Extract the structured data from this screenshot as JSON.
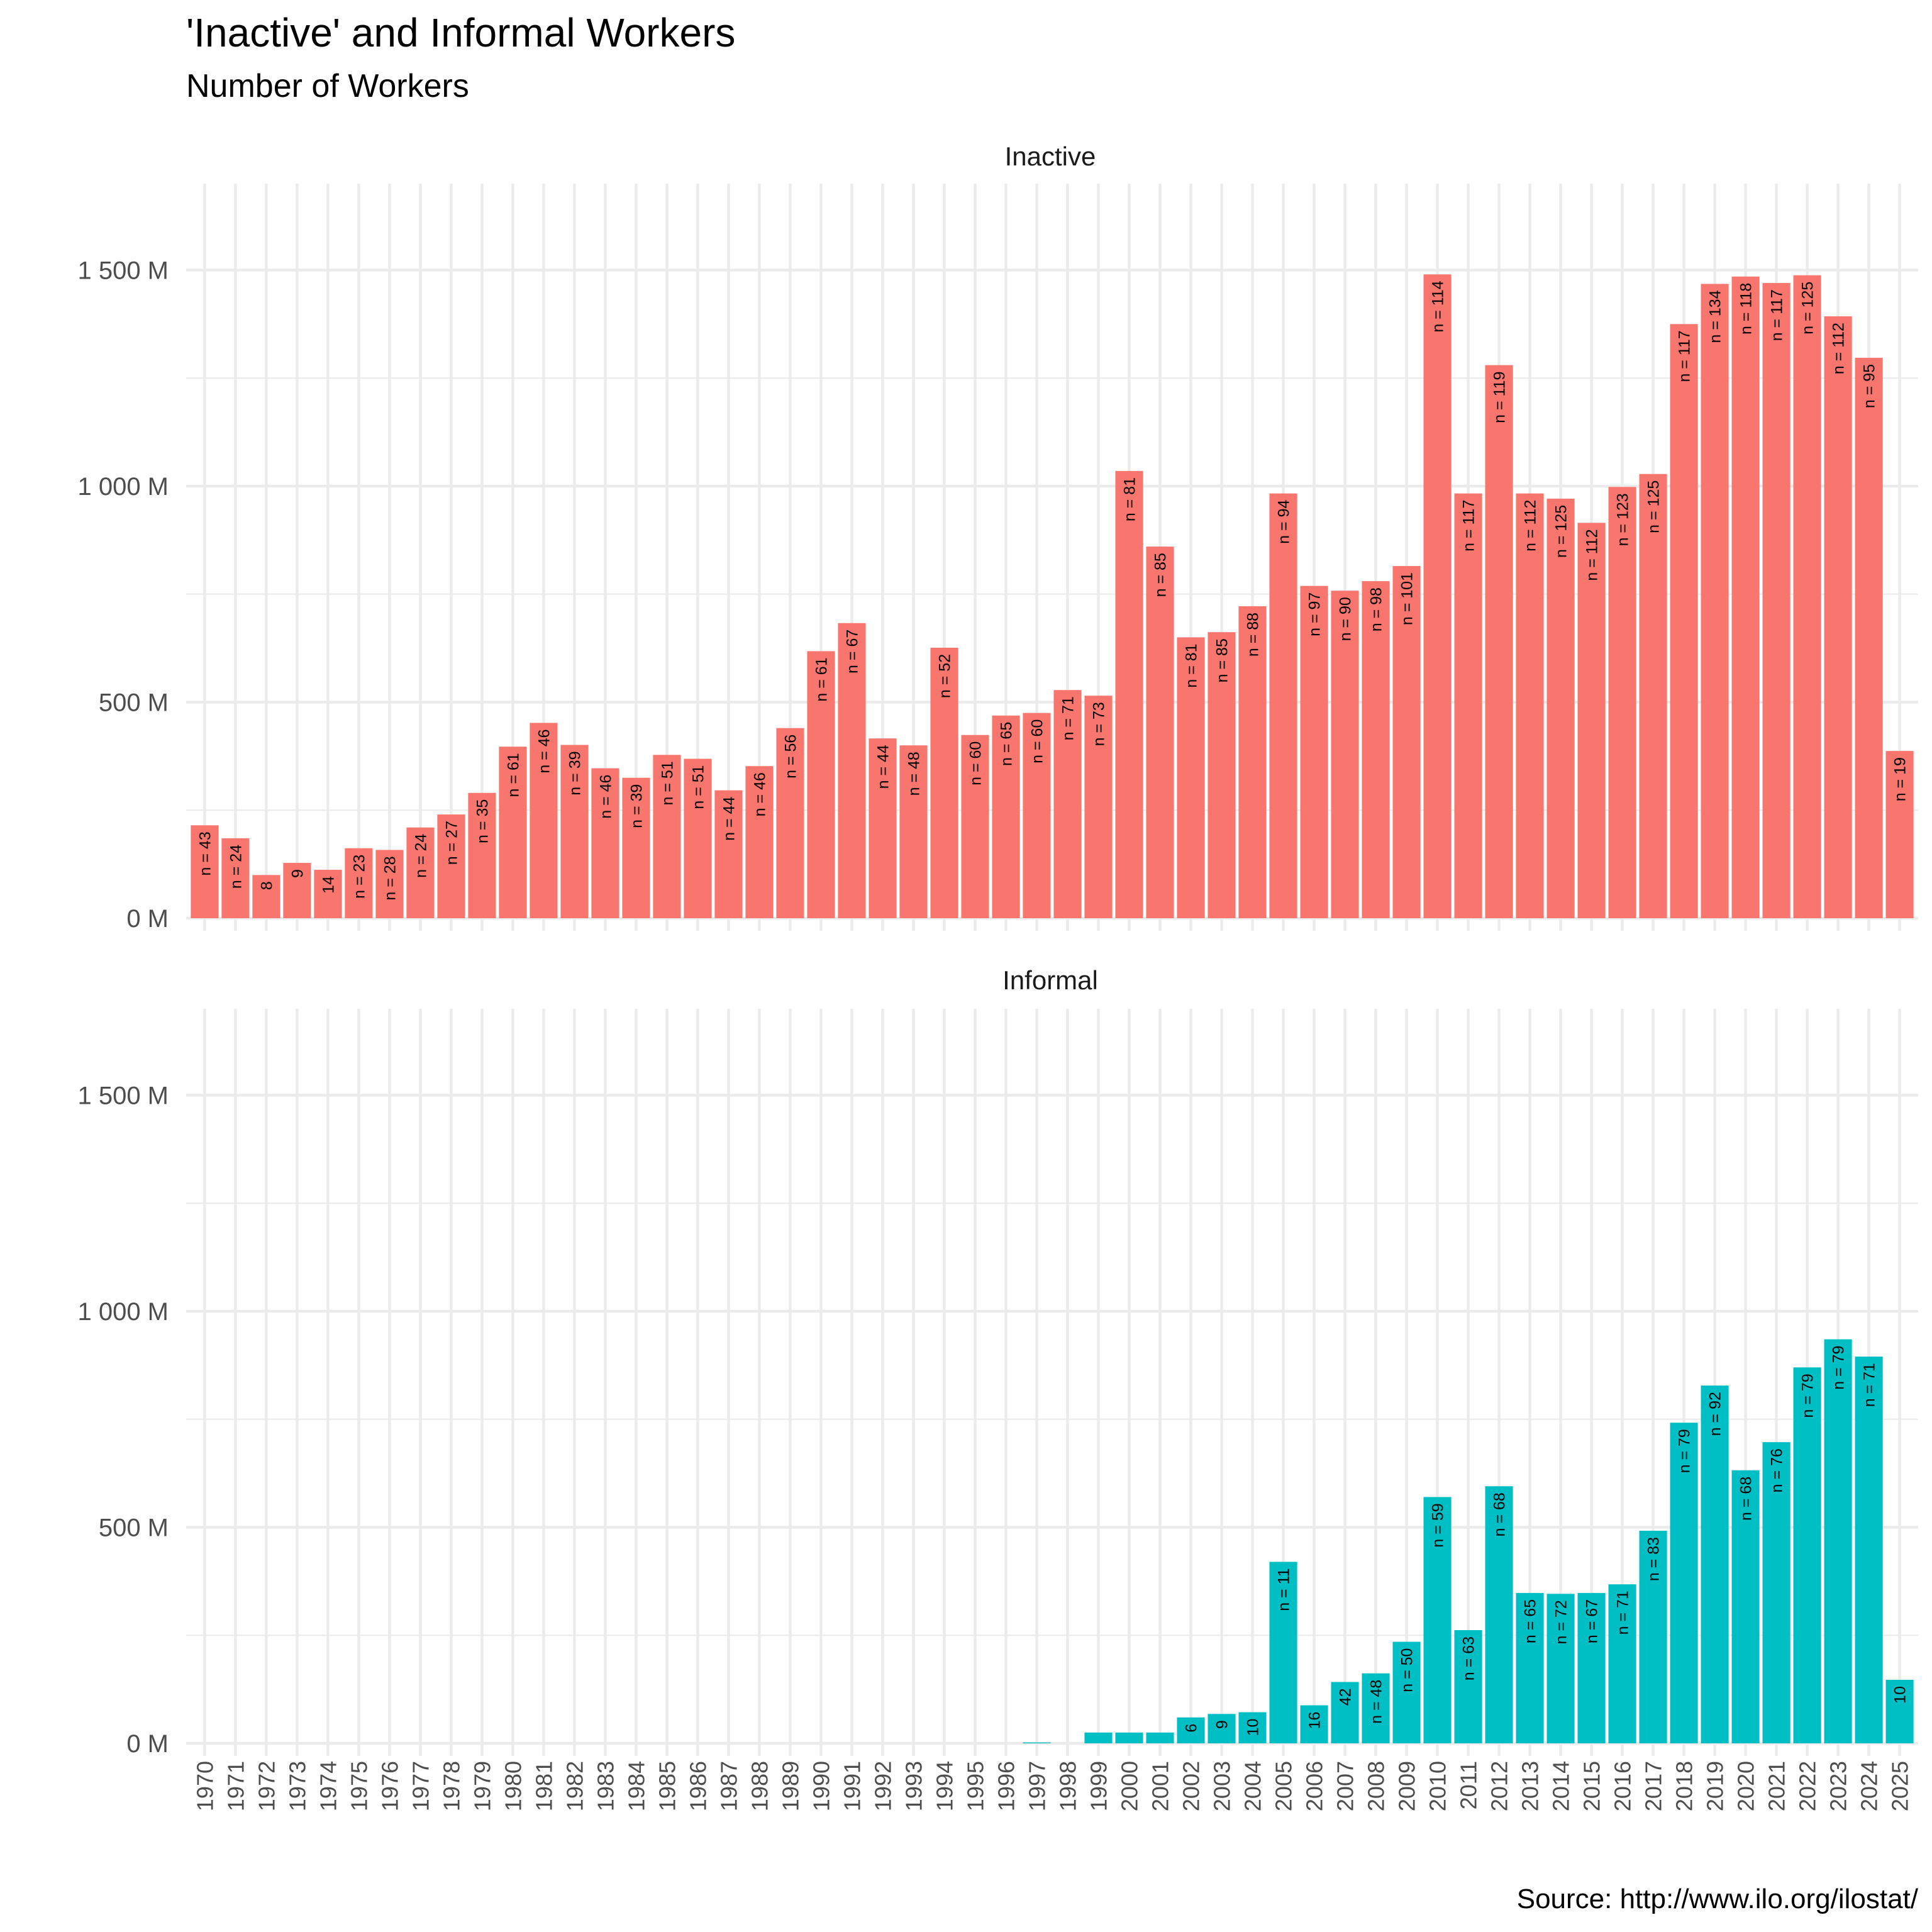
{
  "title": "'Inactive' and Informal Workers",
  "subtitle": "Number of Workers",
  "caption": "Source: http://www.ilo.org/ilostat/",
  "colors": {
    "inactive": "#F8766D",
    "informal": "#00BFC4"
  },
  "chart_data": {
    "type": "bar",
    "facets": [
      "Inactive",
      "Informal"
    ],
    "categories": [
      "1970",
      "1971",
      "1972",
      "1973",
      "1974",
      "1975",
      "1976",
      "1977",
      "1978",
      "1979",
      "1980",
      "1981",
      "1982",
      "1983",
      "1984",
      "1985",
      "1986",
      "1987",
      "1988",
      "1989",
      "1990",
      "1991",
      "1992",
      "1993",
      "1994",
      "1995",
      "1996",
      "1997",
      "1998",
      "1999",
      "2000",
      "2001",
      "2002",
      "2003",
      "2004",
      "2005",
      "2006",
      "2007",
      "2008",
      "2009",
      "2010",
      "2011",
      "2012",
      "2013",
      "2014",
      "2015",
      "2016",
      "2017",
      "2018",
      "2019",
      "2020",
      "2021",
      "2022",
      "2023",
      "2024",
      "2025"
    ],
    "ylabel": "",
    "xlabel": "",
    "ylim": [
      0,
      1700
    ],
    "yticks": [
      0,
      500,
      1000,
      1500
    ],
    "ytick_labels": [
      "0 M",
      "500 M",
      "1 000 M",
      "1 500 M"
    ],
    "unit": "M",
    "series": [
      {
        "name": "Inactive",
        "values": [
          215,
          185,
          100,
          128,
          112,
          162,
          158,
          210,
          240,
          290,
          397,
          452,
          401,
          347,
          325,
          378,
          369,
          296,
          352,
          440,
          618,
          683,
          416,
          400,
          626,
          424,
          469,
          475,
          528,
          515,
          1035,
          860,
          650,
          662,
          722,
          983,
          769,
          758,
          780,
          815,
          1490,
          983,
          1280,
          983,
          971,
          915,
          998,
          1028,
          1375,
          1468,
          1485,
          1470,
          1488,
          1393,
          1297,
          387
        ],
        "n_labels": [
          "n = 43",
          "n = 24",
          "8",
          "9",
          "14",
          "n = 23",
          "n = 28",
          "n = 24",
          "n = 27",
          "n = 35",
          "n = 61",
          "n = 46",
          "n = 39",
          "n = 46",
          "n = 39",
          "n = 51",
          "n = 51",
          "n = 44",
          "n = 46",
          "n = 56",
          "n = 61",
          "n = 67",
          "n = 44",
          "n = 48",
          "n = 52",
          "n = 60",
          "n = 65",
          "n = 60",
          "n = 71",
          "n = 73",
          "n = 81",
          "n = 85",
          "n = 81",
          "n = 85",
          "n = 88",
          "n = 94",
          "n = 97",
          "n = 90",
          "n = 98",
          "n = 101",
          "n = 114",
          "n = 117",
          "n = 119",
          "n = 112",
          "n = 125",
          "n = 112",
          "n = 123",
          "n = 125",
          "n = 117",
          "n = 134",
          "n = 118",
          "n = 117",
          "n = 125",
          "n = 112",
          "n = 95",
          "n = 19"
        ]
      },
      {
        "name": "Informal",
        "values": [
          null,
          null,
          null,
          null,
          null,
          null,
          null,
          null,
          null,
          null,
          null,
          null,
          null,
          null,
          null,
          null,
          null,
          null,
          null,
          null,
          null,
          null,
          null,
          null,
          null,
          null,
          null,
          2,
          null,
          25,
          25,
          25,
          60,
          68,
          72,
          420,
          88,
          142,
          162,
          235,
          570,
          262,
          595,
          348,
          346,
          348,
          368,
          492,
          742,
          828,
          632,
          697,
          870,
          935,
          895,
          147
        ],
        "n_labels": [
          "",
          "",
          "",
          "",
          "",
          "",
          "",
          "",
          "",
          "",
          "",
          "",
          "",
          "",
          "",
          "",
          "",
          "",
          "",
          "",
          "",
          "",
          "",
          "",
          "",
          "",
          "",
          "",
          "",
          "",
          "",
          "",
          "6",
          "9",
          "10",
          "n = 11",
          "16",
          "42",
          "n = 48",
          "n = 50",
          "n = 59",
          "n = 63",
          "n = 68",
          "n = 65",
          "n = 72",
          "n = 67",
          "n = 71",
          "n = 83",
          "n = 79",
          "n = 92",
          "n = 68",
          "n = 76",
          "n = 79",
          "n = 79",
          "n = 71",
          "10"
        ]
      }
    ]
  }
}
